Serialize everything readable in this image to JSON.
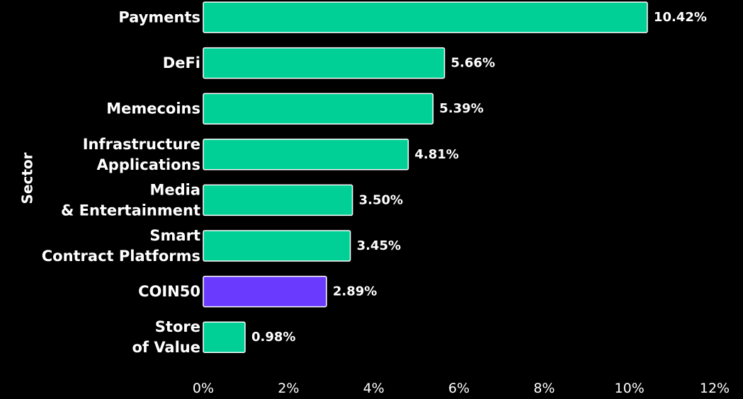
{
  "chart_data": {
    "type": "bar",
    "orientation": "horizontal",
    "ylabel": "Sector",
    "xlabel": "",
    "categories": [
      [
        "Payments"
      ],
      [
        "DeFi"
      ],
      [
        "Memecoins"
      ],
      [
        "Infrastructure",
        "Applications"
      ],
      [
        "Media",
        "& Entertainment"
      ],
      [
        "Smart",
        "Contract Platforms"
      ],
      [
        "COIN50"
      ],
      [
        "Store",
        "of Value"
      ]
    ],
    "values": [
      10.42,
      5.66,
      5.39,
      4.81,
      3.5,
      3.45,
      2.89,
      0.98
    ],
    "value_labels": [
      "10.42%",
      "5.66%",
      "5.39%",
      "4.81%",
      "3.50%",
      "3.45%",
      "2.89%",
      "0.98%"
    ],
    "highlight_index": 6,
    "xlim": [
      0,
      12
    ],
    "xticks": [
      0,
      2,
      4,
      6,
      8,
      10,
      12
    ],
    "xtick_labels": [
      "0%",
      "2%",
      "4%",
      "6%",
      "8%",
      "10%",
      "12%"
    ],
    "grid": false,
    "colors": {
      "background": "#000000",
      "bar": "#00D096",
      "highlight": "#6A3BFF",
      "text": "#FFFFFF",
      "bar_outline": "#FFFFFF"
    }
  }
}
